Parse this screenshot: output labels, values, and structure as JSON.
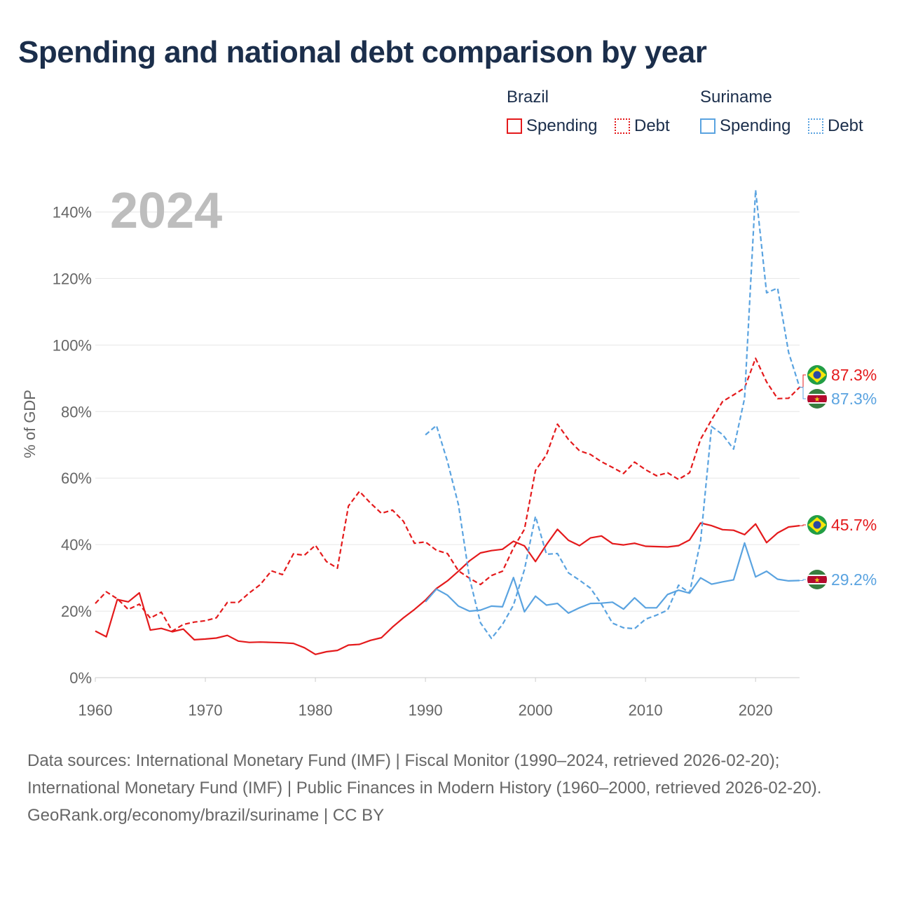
{
  "title": "Spending and national debt comparison by year",
  "legend": {
    "groups": [
      {
        "name": "Brazil",
        "items": [
          {
            "label": "Spending",
            "style": "solid"
          },
          {
            "label": "Debt",
            "style": "dotted"
          }
        ],
        "color": "#e41a1c"
      },
      {
        "name": "Suriname",
        "items": [
          {
            "label": "Spending",
            "style": "solid"
          },
          {
            "label": "Debt",
            "style": "dotted"
          }
        ],
        "color": "#5aa3e0"
      }
    ]
  },
  "footer": {
    "sources": "Data sources: International Monetary Fund (IMF) | Fiscal Monitor (1990–2024, retrieved 2026-02-20); International Monetary Fund (IMF) | Public Finances in Modern History (1960–2000, retrieved 2026-02-20).",
    "credit": "GeoRank.org/economy/brazil/suriname | CC BY"
  },
  "chart_data": {
    "type": "line",
    "title": "Spending and national debt comparison by year",
    "year_label": "2024",
    "xlabel": "",
    "ylabel": "% of GDP",
    "xlim": [
      1960,
      2024
    ],
    "ylim": [
      0,
      150
    ],
    "xticks": [
      1960,
      1970,
      1980,
      1990,
      2000,
      2010,
      2020
    ],
    "yticks": [
      0,
      20,
      40,
      60,
      80,
      100,
      120,
      140
    ],
    "ytick_labels": [
      "0%",
      "20%",
      "40%",
      "60%",
      "80%",
      "100%",
      "120%",
      "140%"
    ],
    "series": [
      {
        "name": "Brazil Spending",
        "country": "Brazil",
        "metric": "Spending",
        "color": "#e41a1c",
        "dash": "solid",
        "end_label": "45.7%",
        "end_value": 45.7,
        "x": [
          1960,
          1961,
          1962,
          1963,
          1964,
          1965,
          1966,
          1967,
          1968,
          1969,
          1970,
          1971,
          1972,
          1973,
          1974,
          1975,
          1976,
          1977,
          1978,
          1979,
          1980,
          1981,
          1982,
          1983,
          1984,
          1985,
          1986,
          1987,
          1988,
          1989,
          1990,
          1991,
          1992,
          1993,
          1994,
          1995,
          1996,
          1997,
          1998,
          1999,
          2000,
          2001,
          2002,
          2003,
          2004,
          2005,
          2006,
          2007,
          2008,
          2009,
          2010,
          2011,
          2012,
          2013,
          2014,
          2015,
          2016,
          2017,
          2018,
          2019,
          2020,
          2021,
          2022,
          2023,
          2024
        ],
        "values": [
          14,
          12.3,
          23.5,
          22.8,
          25.5,
          14.3,
          14.8,
          13.8,
          14.6,
          11.4,
          11.6,
          11.9,
          12.7,
          11,
          10.6,
          10.7,
          10.6,
          10.5,
          10.3,
          9,
          7,
          7.8,
          8.2,
          9.8,
          10,
          11.2,
          12,
          15.2,
          18,
          20.5,
          23.3,
          26.8,
          29.1,
          32,
          35.1,
          37.5,
          38.2,
          38.6,
          41,
          39.6,
          34.9,
          40,
          44.6,
          41.3,
          39.7,
          42,
          42.6,
          40.3,
          39.9,
          40.4,
          39.5,
          39.4,
          39.3,
          39.7,
          41.4,
          46.5,
          45.7,
          44.5,
          44.3,
          43,
          46.2,
          40.6,
          43.5,
          45.3,
          45.7
        ]
      },
      {
        "name": "Brazil Debt",
        "country": "Brazil",
        "metric": "Debt",
        "color": "#e41a1c",
        "dash": "dashed",
        "end_label": "87.3%",
        "end_value": 87.3,
        "x": [
          1960,
          1961,
          1962,
          1963,
          1964,
          1965,
          1966,
          1967,
          1968,
          1969,
          1970,
          1971,
          1972,
          1973,
          1974,
          1975,
          1976,
          1977,
          1978,
          1979,
          1980,
          1981,
          1982,
          1983,
          1984,
          1985,
          1986,
          1987,
          1988,
          1989,
          1990,
          1991,
          1992,
          1993,
          1994,
          1995,
          1996,
          1997,
          1998,
          1999,
          2000,
          2001,
          2002,
          2003,
          2004,
          2005,
          2006,
          2007,
          2008,
          2009,
          2010,
          2011,
          2012,
          2013,
          2014,
          2015,
          2016,
          2017,
          2018,
          2019,
          2020,
          2021,
          2022,
          2023,
          2024
        ],
        "values": [
          22.3,
          25.8,
          23.7,
          20.5,
          22.1,
          17.9,
          19.7,
          14,
          16,
          16.7,
          17.1,
          18,
          22.6,
          22.6,
          25.5,
          28,
          32.1,
          31,
          37.2,
          36.8,
          39.8,
          34.9,
          32.9,
          51.6,
          56,
          52.5,
          49.4,
          50.4,
          47,
          40.4,
          40.8,
          38.3,
          37.3,
          32.1,
          29.9,
          28,
          30.7,
          32,
          39,
          44.6,
          62.3,
          67,
          76.2,
          71.6,
          68.2,
          67.1,
          64.9,
          63.2,
          61.4,
          64.8,
          62.5,
          60.7,
          61.6,
          59.6,
          61.6,
          71.7,
          77.5,
          83,
          85,
          87.1,
          96,
          88.9,
          83.9,
          84,
          87.3
        ]
      },
      {
        "name": "Suriname Spending",
        "country": "Suriname",
        "metric": "Spending",
        "color": "#5aa3e0",
        "dash": "solid",
        "end_label": "29.2%",
        "end_value": 29.2,
        "x": [
          1990,
          1991,
          1992,
          1993,
          1994,
          1995,
          1996,
          1997,
          1998,
          1999,
          2000,
          2001,
          2002,
          2003,
          2004,
          2005,
          2006,
          2007,
          2008,
          2009,
          2010,
          2011,
          2012,
          2013,
          2014,
          2015,
          2016,
          2017,
          2018,
          2019,
          2020,
          2021,
          2022,
          2023,
          2024
        ],
        "values": [
          22.8,
          26.6,
          24.8,
          21.5,
          20,
          20.3,
          21.5,
          21.3,
          30.1,
          19.8,
          24.5,
          21.8,
          22.3,
          19.4,
          21,
          22.3,
          22.4,
          22.7,
          20.6,
          24,
          21,
          21,
          25,
          26.3,
          25.4,
          30,
          28.1,
          28.8,
          29.4,
          40.5,
          30.3,
          32,
          29.6,
          29.1,
          29.2
        ]
      },
      {
        "name": "Suriname Debt",
        "country": "Suriname",
        "metric": "Debt",
        "color": "#5aa3e0",
        "dash": "dashed",
        "end_label": "87.3%",
        "end_value": 87.3,
        "x": [
          1990,
          1991,
          1992,
          1993,
          1994,
          1995,
          1996,
          1997,
          1998,
          1999,
          2000,
          2001,
          2002,
          2003,
          2004,
          2005,
          2006,
          2007,
          2008,
          2009,
          2010,
          2011,
          2012,
          2013,
          2014,
          2015,
          2016,
          2017,
          2018,
          2019,
          2020,
          2021,
          2022,
          2023,
          2024
        ],
        "values": [
          73,
          75.8,
          65,
          52,
          30,
          16.5,
          11.8,
          16,
          21.8,
          32.5,
          48.5,
          37.1,
          37.3,
          31.5,
          29.3,
          26.9,
          22.1,
          16.4,
          15,
          14.7,
          17.6,
          18.8,
          20.3,
          27.8,
          25.5,
          41,
          75.5,
          73.1,
          68.7,
          84,
          146.6,
          115.7,
          117.1,
          97.8,
          87.3
        ]
      }
    ]
  }
}
